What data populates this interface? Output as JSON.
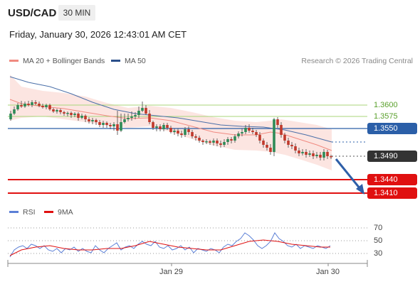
{
  "header": {
    "symbol": "USD/CAD",
    "timeframe": "30 MIN",
    "datetime": "Friday, January 30, 2026 12:43:01 AM CET"
  },
  "legend": {
    "items": [
      {
        "label": "MA 20 + Bollinger Bands",
        "color": "#f08a80"
      },
      {
        "label": "MA 50",
        "color": "#2b4f8a"
      }
    ],
    "research": "Research © 2026 Trading Central"
  },
  "levels": {
    "resistance": [
      "1.3600",
      "1.3575"
    ],
    "ma50_tag": "1.3550",
    "last_price": "1.3490",
    "support_1": "1.3440",
    "support_2": "1.3410"
  },
  "rsi_panel": {
    "legend": [
      {
        "label": "RSI",
        "color": "#5b7fd6"
      },
      {
        "label": "9MA",
        "color": "#e01010"
      }
    ],
    "scale": [
      "70",
      "50",
      "30"
    ]
  },
  "x_axis": {
    "labels": [
      "Jan 29",
      "Jan 30"
    ]
  },
  "colors": {
    "up": "#2e8b57",
    "down": "#c0392b",
    "support": "#e01010",
    "resistance": "#8bc34a",
    "ma50": "#2b4f8a",
    "arrow": "#2e5fa8"
  }
}
